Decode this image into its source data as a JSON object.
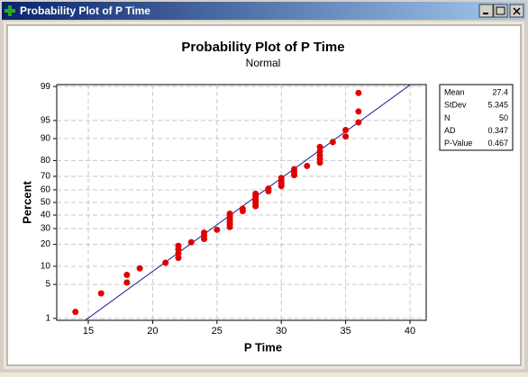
{
  "window": {
    "title": "Probability Plot of P Time"
  },
  "chart_data": {
    "type": "probability",
    "title": "Probability Plot of P Time",
    "subtitle": "Normal",
    "xlabel": "P Time",
    "ylabel": "Percent",
    "yscale": "normal-probability",
    "grid": true,
    "series": [
      {
        "name": "P Time",
        "color": "#e00000",
        "x": [
          14,
          16,
          18,
          18,
          19,
          21,
          22,
          22,
          22,
          22,
          23,
          24,
          24,
          24,
          25,
          26,
          26,
          26,
          26,
          26,
          26,
          27,
          27,
          28,
          28,
          28,
          28,
          28,
          28,
          29,
          29,
          30,
          30,
          30,
          30,
          31,
          31,
          31,
          32,
          33,
          33,
          33,
          33,
          33,
          34,
          35,
          35,
          36,
          36,
          36
        ],
        "values": [
          1.4,
          3.4,
          5.4,
          7.3,
          9.3,
          11.3,
          13.3,
          15.3,
          17.3,
          19.2,
          21.2,
          23.2,
          25.2,
          27.2,
          29.2,
          31.1,
          33.1,
          35.1,
          37.1,
          39.1,
          41.1,
          43.1,
          45.0,
          47.0,
          49.0,
          51.0,
          53.0,
          55.0,
          56.9,
          58.9,
          60.9,
          62.9,
          64.9,
          66.9,
          68.8,
          70.8,
          72.8,
          74.8,
          76.8,
          78.8,
          80.8,
          82.7,
          84.7,
          86.7,
          88.7,
          90.7,
          92.7,
          94.6,
          96.6,
          98.6
        ]
      }
    ],
    "fit_line_color": "#1a1a9a",
    "xlim": [
      12.55,
      41.26
    ],
    "xticks": [
      15,
      20,
      25,
      30,
      35,
      40
    ],
    "ylim": [
      0.9,
      99.1
    ],
    "yticks": [
      1,
      5,
      10,
      20,
      30,
      40,
      50,
      60,
      70,
      80,
      90,
      95,
      99
    ],
    "stats": [
      {
        "label": "Mean",
        "value": 27.4
      },
      {
        "label": "StDev",
        "value": 5.345
      },
      {
        "label": "N",
        "value": 50
      },
      {
        "label": "AD",
        "value": 0.347
      },
      {
        "label": "P-Value",
        "value": 0.467
      }
    ]
  }
}
